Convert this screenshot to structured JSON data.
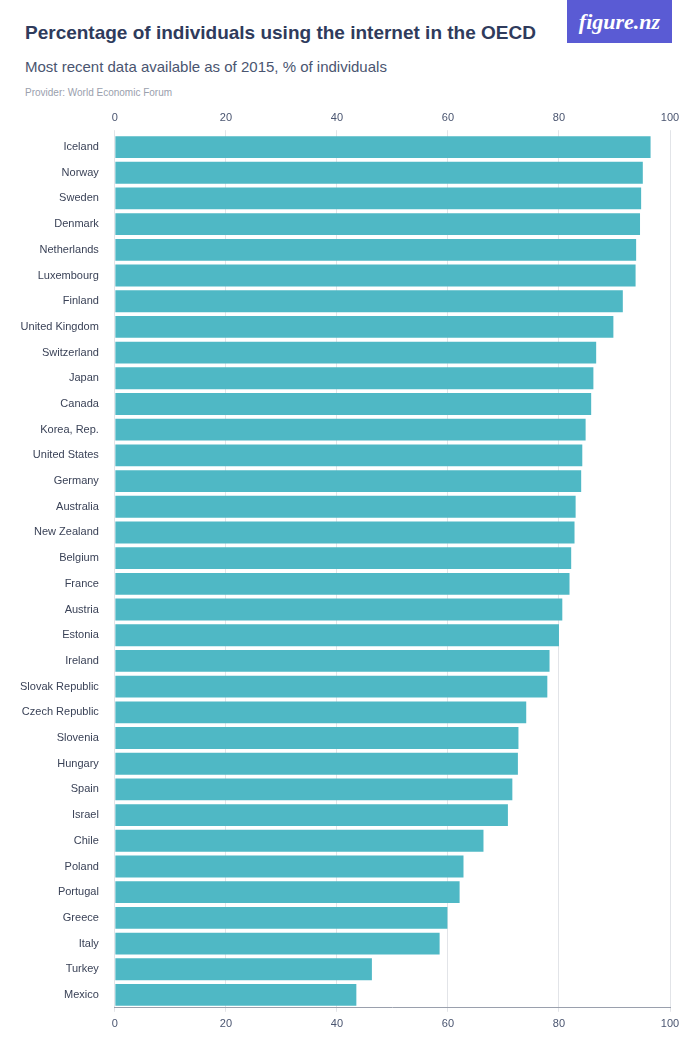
{
  "chart_data": {
    "type": "bar",
    "title": "Percentage of individuals using the internet in the OECD",
    "subtitle": "Most recent data available as of 2015, % of individuals",
    "source": "Provider: World Economic Forum",
    "logo": "figure.nz",
    "orientation": "horizontal",
    "categories": [
      "Iceland",
      "Norway",
      "Sweden",
      "Denmark",
      "Netherlands",
      "Luxembourg",
      "Finland",
      "United Kingdom",
      "Switzerland",
      "Japan",
      "Canada",
      "Korea, Rep.",
      "United States",
      "Germany",
      "Australia",
      "New Zealand",
      "Belgium",
      "France",
      "Austria",
      "Estonia",
      "Ireland",
      "Slovak Republic",
      "Czech Republic",
      "Slovenia",
      "Hungary",
      "Spain",
      "Israel",
      "Chile",
      "Poland",
      "Portugal",
      "Greece",
      "Italy",
      "Turkey",
      "Mexico"
    ],
    "values": [
      96.5,
      95.1,
      94.8,
      94.6,
      93.9,
      93.8,
      91.5,
      89.8,
      86.7,
      86.2,
      85.8,
      84.8,
      84.2,
      84.0,
      83.0,
      82.8,
      82.2,
      81.9,
      80.6,
      80.0,
      78.3,
      77.9,
      74.1,
      72.7,
      72.6,
      71.6,
      70.8,
      66.4,
      62.8,
      62.1,
      59.9,
      58.5,
      46.3,
      43.5
    ],
    "color": "#4fb8c5",
    "xlim": [
      0,
      100
    ],
    "xticks": [
      0,
      20,
      40,
      60,
      80,
      100
    ],
    "grid": true
  }
}
